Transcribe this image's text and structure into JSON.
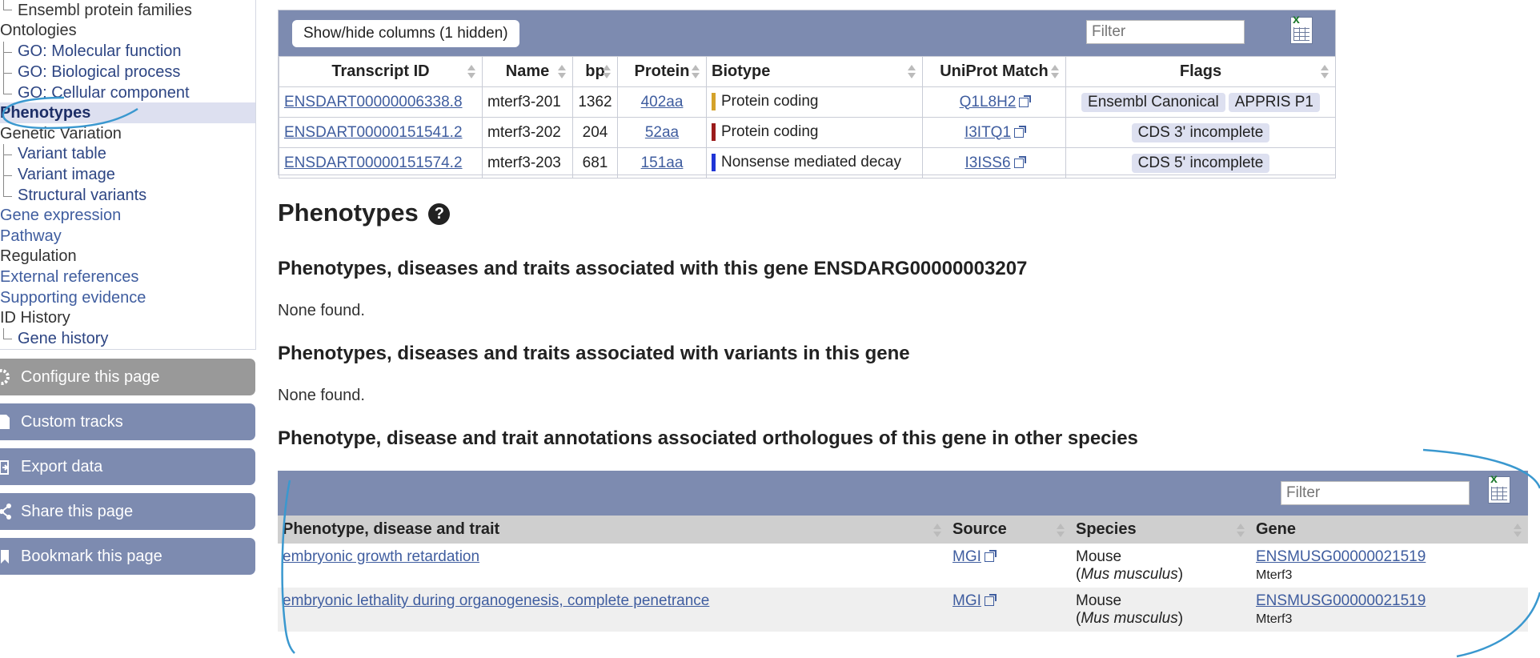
{
  "sidebar": {
    "items": [
      {
        "label": "Ensembl protein families",
        "type": "child-plain"
      },
      {
        "label": "Ontologies",
        "type": "plain"
      },
      {
        "label": "GO: Molecular function",
        "type": "child-link"
      },
      {
        "label": "GO: Biological process",
        "type": "child-link"
      },
      {
        "label": "GO: Cellular component",
        "type": "child-link"
      },
      {
        "label": "Phenotypes",
        "type": "selected"
      },
      {
        "label": "Genetic Variation",
        "type": "plain"
      },
      {
        "label": "Variant table",
        "type": "child-link"
      },
      {
        "label": "Variant image",
        "type": "child-link"
      },
      {
        "label": "Structural variants",
        "type": "child-link"
      },
      {
        "label": "Gene expression",
        "type": "link"
      },
      {
        "label": "Pathway",
        "type": "link"
      },
      {
        "label": "Regulation",
        "type": "plain"
      },
      {
        "label": "External references",
        "type": "link"
      },
      {
        "label": "Supporting evidence",
        "type": "link"
      },
      {
        "label": "ID History",
        "type": "plain"
      },
      {
        "label": "Gene history",
        "type": "child-link"
      }
    ],
    "buttons": {
      "configure": "Configure this page",
      "custom_tracks": "Custom tracks",
      "export": "Export data",
      "share": "Share this page",
      "bookmark": "Bookmark this page"
    }
  },
  "transcripts": {
    "show_hide": "Show/hide columns (1 hidden)",
    "filter_placeholder": "Filter",
    "headers": [
      "Transcript ID",
      "Name",
      "bp",
      "Protein",
      "Biotype",
      "UniProt Match",
      "Flags"
    ],
    "rows": [
      {
        "id": "ENSDART00000006338.8",
        "name": "mterf3-201",
        "bp": "1362",
        "protein": "402aa",
        "biotype": "Protein coding",
        "biotype_color": "#d4a22a",
        "uniprot": "Q1L8H2",
        "flags": [
          "Ensembl Canonical",
          "APPRIS P1"
        ]
      },
      {
        "id": "ENSDART00000151541.2",
        "name": "mterf3-202",
        "bp": "204",
        "protein": "52aa",
        "biotype": "Protein coding",
        "biotype_color": "#9b1b1b",
        "uniprot": "I3ITQ1",
        "flags": [
          "CDS 3' incomplete"
        ]
      },
      {
        "id": "ENSDART00000151574.2",
        "name": "mterf3-203",
        "bp": "681",
        "protein": "151aa",
        "biotype": "Nonsense mediated decay",
        "biotype_color": "#1f35d6",
        "uniprot": "I3ISS6",
        "flags": [
          "CDS 5' incomplete"
        ]
      }
    ]
  },
  "main": {
    "title": "Phenotypes",
    "section1_title": "Phenotypes, diseases and traits associated with this gene ENSDARG00000003207",
    "section1_text": "None found.",
    "section2_title": "Phenotypes, diseases and traits associated with variants in this gene",
    "section2_text": "None found.",
    "section3_title": "Phenotype, disease and trait annotations associated orthologues of this gene in other species"
  },
  "orthologues": {
    "filter_placeholder": "Filter",
    "headers": [
      "Phenotype, disease and trait",
      "Source",
      "Species",
      "Gene"
    ],
    "rows": [
      {
        "phenotype": "embryonic growth retardation",
        "source": "MGI",
        "species": "Mouse",
        "species_latin": "Mus musculus",
        "gene": "ENSMUSG00000021519",
        "gene_name": "Mterf3"
      },
      {
        "phenotype": "embryonic lethality during organogenesis, complete penetrance",
        "source": "MGI",
        "species": "Mouse",
        "species_latin": "Mus musculus",
        "gene": "ENSMUSG00000021519",
        "gene_name": "Mterf3"
      }
    ]
  },
  "colors": {
    "header_bar": "#7d8bb0",
    "link": "#3f5d9f",
    "annotation": "#3a98cf"
  }
}
